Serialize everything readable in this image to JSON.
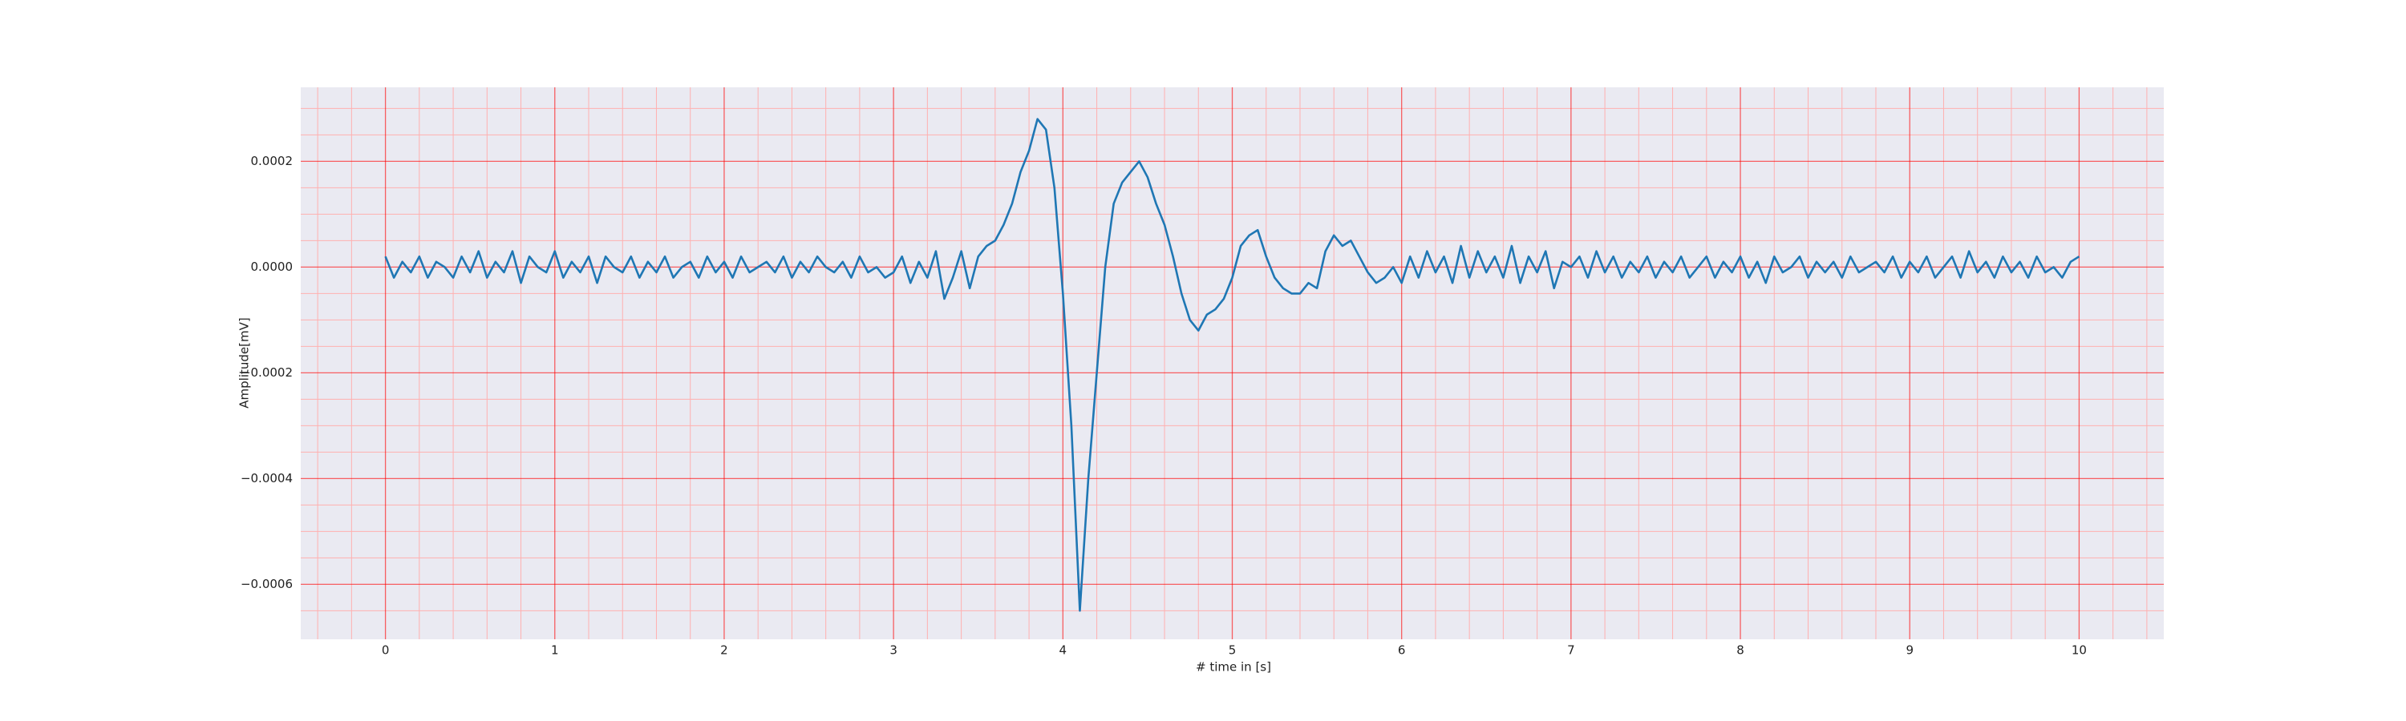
{
  "chart_data": {
    "type": "line",
    "xlabel": "# time in [s]",
    "ylabel": "Amplitude[mV]",
    "color": "#1f77b4",
    "background": "#eaeaf2",
    "grid": true,
    "grid_color": "#ff0000",
    "minor_grid": true,
    "minor_grid_color": "#ffb0b0",
    "xlim": [
      -0.5,
      10.5
    ],
    "ylim": [
      -0.000704,
      0.00034
    ],
    "xticks": [
      0,
      1,
      2,
      3,
      4,
      5,
      6,
      7,
      8,
      9,
      10
    ],
    "yticks": [
      {
        "value": -0.0006,
        "label": "−0.0006"
      },
      {
        "value": -0.0004,
        "label": "−0.0004"
      },
      {
        "value": -0.0002,
        "label": "−0.0002"
      },
      {
        "value": 0,
        "label": "0.0000"
      },
      0.0002
    ],
    "xminor": [
      -0.4,
      -0.2,
      0.2,
      0.4,
      0.6,
      0.8,
      1.2,
      1.4,
      1.6,
      1.8,
      2.2,
      2.4,
      2.6,
      2.8,
      3.2,
      3.4,
      3.6,
      3.8,
      4.2,
      4.4,
      4.6,
      4.8,
      5.2,
      5.4,
      5.6,
      5.8,
      6.2,
      6.4,
      6.6,
      6.8,
      7.2,
      7.4,
      7.6,
      7.8,
      8.2,
      8.4,
      8.6,
      8.8,
      9.2,
      9.4,
      9.6,
      9.8,
      10.2,
      10.4
    ],
    "yminor": [
      -0.00065,
      -0.00055,
      -0.0005,
      -0.00045,
      -0.00035,
      -0.0003,
      -0.00025,
      -0.00015,
      -0.0001,
      -5e-05,
      5e-05,
      0.0001,
      0.00015,
      0.00025,
      0.0003
    ],
    "x": [
      0,
      0.05,
      0.1,
      0.15,
      0.2,
      0.25,
      0.3,
      0.35,
      0.4,
      0.45,
      0.5,
      0.55,
      0.6,
      0.65,
      0.7,
      0.75,
      0.8,
      0.85,
      0.9,
      0.95,
      1,
      1.05,
      1.1,
      1.15,
      1.2,
      1.25,
      1.3,
      1.35,
      1.4,
      1.45,
      1.5,
      1.55,
      1.6,
      1.65,
      1.7,
      1.75,
      1.8,
      1.85,
      1.9,
      1.95,
      2,
      2.05,
      2.1,
      2.15,
      2.2,
      2.25,
      2.3,
      2.35,
      2.4,
      2.45,
      2.5,
      2.55,
      2.6,
      2.65,
      2.7,
      2.75,
      2.8,
      2.85,
      2.9,
      2.95,
      3,
      3.05,
      3.1,
      3.15,
      3.2,
      3.25,
      3.3,
      3.35,
      3.4,
      3.45,
      3.5,
      3.55,
      3.6,
      3.65,
      3.7,
      3.75,
      3.8,
      3.85,
      3.9,
      3.95,
      4,
      4.05,
      4.1,
      4.15,
      4.2,
      4.25,
      4.3,
      4.35,
      4.4,
      4.45,
      4.5,
      4.55,
      4.6,
      4.65,
      4.7,
      4.75,
      4.8,
      4.85,
      4.9,
      4.95,
      5,
      5.05,
      5.1,
      5.15,
      5.2,
      5.25,
      5.3,
      5.35,
      5.4,
      5.45,
      5.5,
      5.55,
      5.6,
      5.65,
      5.7,
      5.75,
      5.8,
      5.85,
      5.9,
      5.95,
      6,
      6.05,
      6.1,
      6.15,
      6.2,
      6.25,
      6.3,
      6.35,
      6.4,
      6.45,
      6.5,
      6.55,
      6.6,
      6.65,
      6.7,
      6.75,
      6.8,
      6.85,
      6.9,
      6.95,
      7,
      7.05,
      7.1,
      7.15,
      7.2,
      7.25,
      7.3,
      7.35,
      7.4,
      7.45,
      7.5,
      7.55,
      7.6,
      7.65,
      7.7,
      7.75,
      7.8,
      7.85,
      7.9,
      7.95,
      8,
      8.05,
      8.1,
      8.15,
      8.2,
      8.25,
      8.3,
      8.35,
      8.4,
      8.45,
      8.5,
      8.55,
      8.6,
      8.65,
      8.7,
      8.75,
      8.8,
      8.85,
      8.9,
      8.95,
      9,
      9.05,
      9.1,
      9.15,
      9.2,
      9.25,
      9.3,
      9.35,
      9.4,
      9.45,
      9.5,
      9.55,
      9.6,
      9.65,
      9.7,
      9.75,
      9.8,
      9.85,
      9.9,
      9.95,
      10
    ],
    "values": [
      2e-05,
      -2e-05,
      1e-05,
      -1e-05,
      2e-05,
      -2e-05,
      1e-05,
      0,
      -2e-05,
      2e-05,
      -1e-05,
      3e-05,
      -2e-05,
      1e-05,
      -1e-05,
      3e-05,
      -3e-05,
      2e-05,
      0,
      -1e-05,
      3e-05,
      -2e-05,
      1e-05,
      -1e-05,
      2e-05,
      -3e-05,
      2e-05,
      0,
      -1e-05,
      2e-05,
      -2e-05,
      1e-05,
      -1e-05,
      2e-05,
      -2e-05,
      0,
      1e-05,
      -2e-05,
      2e-05,
      -1e-05,
      1e-05,
      -2e-05,
      2e-05,
      -1e-05,
      0,
      1e-05,
      -1e-05,
      2e-05,
      -2e-05,
      1e-05,
      -1e-05,
      2e-05,
      0,
      -1e-05,
      1e-05,
      -2e-05,
      2e-05,
      -1e-05,
      0,
      -2e-05,
      -1e-05,
      2e-05,
      -3e-05,
      1e-05,
      -2e-05,
      3e-05,
      -6e-05,
      -2e-05,
      3e-05,
      -4e-05,
      2e-05,
      4e-05,
      5e-05,
      8e-05,
      0.00012,
      0.00018,
      0.00022,
      0.00028,
      0.00026,
      0.00015,
      -5e-05,
      -0.0003,
      -0.00065,
      -0.0004,
      -0.0002,
      0,
      0.00012,
      0.00016,
      0.00018,
      0.0002,
      0.00017,
      0.00012,
      8e-05,
      2e-05,
      -5e-05,
      -0.0001,
      -0.00012,
      -9e-05,
      -8e-05,
      -6e-05,
      -2e-05,
      4e-05,
      6e-05,
      7e-05,
      2e-05,
      -2e-05,
      -4e-05,
      -5e-05,
      -5e-05,
      -3e-05,
      -4e-05,
      3e-05,
      6e-05,
      4e-05,
      5e-05,
      2e-05,
      -1e-05,
      -3e-05,
      -2e-05,
      0,
      -3e-05,
      2e-05,
      -2e-05,
      3e-05,
      -1e-05,
      2e-05,
      -3e-05,
      4e-05,
      -2e-05,
      3e-05,
      -1e-05,
      2e-05,
      -2e-05,
      4e-05,
      -3e-05,
      2e-05,
      -1e-05,
      3e-05,
      -4e-05,
      1e-05,
      0,
      2e-05,
      -2e-05,
      3e-05,
      -1e-05,
      2e-05,
      -2e-05,
      1e-05,
      -1e-05,
      2e-05,
      -2e-05,
      1e-05,
      -1e-05,
      2e-05,
      -2e-05,
      0,
      2e-05,
      -2e-05,
      1e-05,
      -1e-05,
      2e-05,
      -2e-05,
      1e-05,
      -3e-05,
      2e-05,
      -1e-05,
      0,
      2e-05,
      -2e-05,
      1e-05,
      -1e-05,
      1e-05,
      -2e-05,
      2e-05,
      -1e-05,
      0,
      1e-05,
      -1e-05,
      2e-05,
      -2e-05,
      1e-05,
      -1e-05,
      2e-05,
      -2e-05,
      0,
      2e-05,
      -2e-05,
      3e-05,
      -1e-05,
      1e-05,
      -2e-05,
      2e-05,
      -1e-05,
      1e-05,
      -2e-05,
      2e-05,
      -1e-05,
      0,
      -2e-05,
      1e-05,
      2e-05
    ]
  }
}
